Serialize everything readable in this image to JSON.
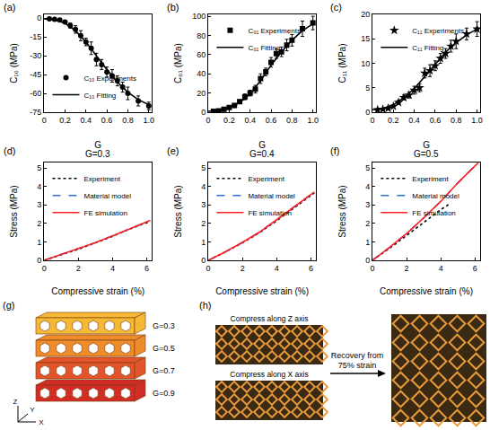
{
  "chart_data": [
    {
      "type": "scatter",
      "panel": "(a)",
      "x_label": "G",
      "y_label": "C₁₀ (MPa)",
      "xlim": [
        0,
        1.03
      ],
      "xticks": [
        0,
        0.2,
        0.4,
        0.6,
        0.8,
        {
          "value": 1,
          "label": "1.0"
        }
      ],
      "ylim": [
        -75,
        3
      ],
      "yticks": [
        -75,
        -60,
        -45,
        -30,
        -15,
        0
      ],
      "grid": false,
      "legend": "lower left",
      "series": [
        {
          "name": "C₁₀ Experiments",
          "type": "scatter",
          "marker": "circle",
          "color": "#000000",
          "x": [
            0.05,
            0.1,
            0.15,
            0.2,
            0.25,
            0.3,
            0.35,
            0.4,
            0.45,
            0.5,
            0.55,
            0.6,
            0.65,
            0.7,
            0.75,
            0.8,
            0.9,
            1.0
          ],
          "values": [
            -0.5,
            -1,
            -1.5,
            -3,
            -6,
            -9,
            -14,
            -19,
            -24,
            -33,
            -37,
            -43,
            -46,
            -50,
            -55,
            -60,
            -66,
            -70
          ],
          "errors": [
            0.5,
            0.5,
            1,
            1,
            2,
            3,
            4,
            3,
            5,
            5,
            4,
            4,
            5,
            4,
            4,
            5,
            4,
            3
          ]
        },
        {
          "name": "C₁₀ Fitting",
          "type": "line",
          "line_style": "solid",
          "color": "#000000",
          "x": [
            0,
            0.1,
            0.2,
            0.3,
            0.4,
            0.5,
            0.6,
            0.7,
            0.8,
            0.9,
            1.0
          ],
          "values": [
            -0.5,
            -1.5,
            -4,
            -10,
            -19,
            -30,
            -41,
            -51,
            -59,
            -65,
            -69
          ]
        }
      ]
    },
    {
      "type": "scatter",
      "panel": "(b)",
      "x_label": "G",
      "y_label": "C₀₁ (MPa)",
      "xlim": [
        0,
        1.03
      ],
      "xticks": [
        0,
        0.2,
        0.4,
        0.6,
        0.8,
        {
          "value": 1,
          "label": "1.0"
        }
      ],
      "ylim": [
        0,
        102
      ],
      "yticks": [
        0,
        20,
        40,
        60,
        80,
        100
      ],
      "grid": false,
      "legend": "upper left",
      "series": [
        {
          "name": "C₀₁ Experiments",
          "type": "scatter",
          "marker": "square",
          "color": "#000000",
          "x": [
            0.05,
            0.1,
            0.15,
            0.2,
            0.25,
            0.3,
            0.35,
            0.4,
            0.45,
            0.5,
            0.55,
            0.6,
            0.65,
            0.7,
            0.75,
            0.8,
            0.9,
            1.0
          ],
          "values": [
            1,
            1.5,
            3,
            5,
            7,
            11,
            16,
            20,
            24,
            35,
            42,
            52,
            61,
            63,
            70,
            75,
            87,
            93
          ],
          "errors": [
            0.5,
            1,
            1,
            1,
            2,
            2,
            3,
            3,
            4,
            5,
            4,
            5,
            5,
            5,
            6,
            6,
            8,
            7
          ]
        },
        {
          "name": "C₀₁ Fitting",
          "type": "line",
          "line_style": "solid",
          "color": "#000000",
          "x": [
            0,
            0.1,
            0.2,
            0.3,
            0.4,
            0.5,
            0.6,
            0.7,
            0.8,
            0.9,
            1.0
          ],
          "values": [
            1,
            2,
            5,
            10,
            19,
            33,
            49,
            63,
            75,
            85,
            92
          ]
        }
      ]
    },
    {
      "type": "scatter",
      "panel": "(c)",
      "x_label": "G",
      "y_label": "C₁₁ (MPa)",
      "xlim": [
        0,
        1.03
      ],
      "xticks": [
        0,
        0.2,
        0.4,
        0.6,
        0.8,
        {
          "value": 1,
          "label": "1.0"
        }
      ],
      "ylim": [
        0,
        20
      ],
      "yticks": [
        0,
        5,
        10,
        15,
        20
      ],
      "grid": false,
      "legend": "upper left",
      "series": [
        {
          "name": "C₁₁ Experiments",
          "type": "scatter",
          "marker": "star",
          "color": "#000000",
          "x": [
            0.05,
            0.1,
            0.15,
            0.2,
            0.25,
            0.3,
            0.35,
            0.4,
            0.45,
            0.5,
            0.55,
            0.6,
            0.65,
            0.7,
            0.75,
            0.8,
            0.9,
            1.0
          ],
          "values": [
            0.5,
            0.6,
            0.8,
            1.2,
            2,
            3,
            3.5,
            4.5,
            5,
            8,
            8.5,
            9.5,
            11,
            12,
            13.5,
            14.5,
            16,
            17
          ],
          "errors": [
            0.2,
            0.2,
            0.3,
            0.3,
            0.4,
            0.5,
            0.6,
            0.8,
            0.8,
            1,
            1.2,
            1,
            1,
            1,
            1.2,
            1.5,
            1.2,
            1.5
          ]
        },
        {
          "name": "C₁₁ Fitting",
          "type": "line",
          "line_style": "solid",
          "color": "#000000",
          "x": [
            0,
            0.1,
            0.2,
            0.3,
            0.4,
            0.5,
            0.6,
            0.7,
            0.8,
            0.9,
            1.0
          ],
          "values": [
            0.5,
            0.7,
            1.5,
            3,
            4.8,
            7.3,
            10,
            12.3,
            14.2,
            15.8,
            17
          ]
        }
      ]
    },
    {
      "type": "scatter",
      "panel": "(d)",
      "title": "G=0.3",
      "x_label": "Compressive strain (%)",
      "y_label": "Stress (MPa)",
      "xlim": [
        0,
        6.3
      ],
      "xticks": [
        0,
        2,
        4,
        6
      ],
      "ylim": [
        0,
        5.3
      ],
      "yticks": [
        0,
        1,
        2,
        3,
        4,
        5
      ],
      "grid": false,
      "legend": "upper left",
      "series": [
        {
          "name": "Experiment",
          "type": "line",
          "line_style": "dotted",
          "color": "#000000",
          "x": [
            0,
            1,
            2,
            3,
            4,
            5,
            6.2
          ],
          "values": [
            0,
            0.3,
            0.6,
            0.95,
            1.3,
            1.7,
            2.1
          ]
        },
        {
          "name": "Material model",
          "type": "line",
          "line_style": "dashed",
          "color": "#2e6fd8",
          "x": [
            0,
            1,
            2,
            3,
            4,
            5,
            6.2
          ],
          "values": [
            0,
            0.31,
            0.62,
            0.96,
            1.32,
            1.7,
            2.15
          ]
        },
        {
          "name": "FE simulation",
          "type": "line",
          "line_style": "solid",
          "color": "#ff2020",
          "x": [
            0,
            1,
            2,
            3,
            4,
            5,
            6.2
          ],
          "values": [
            0,
            0.31,
            0.62,
            0.96,
            1.32,
            1.71,
            2.16
          ]
        }
      ]
    },
    {
      "type": "scatter",
      "panel": "(e)",
      "title": "G=0.4",
      "x_label": "Compressive strain (%)",
      "y_label": "Stress (MPa)",
      "xlim": [
        0,
        6.3
      ],
      "xticks": [
        0,
        2,
        4,
        6
      ],
      "ylim": [
        0,
        5.3
      ],
      "yticks": [
        0,
        1,
        2,
        3,
        4,
        5
      ],
      "grid": false,
      "legend": "upper left",
      "series": [
        {
          "name": "Experiment",
          "type": "line",
          "line_style": "dotted",
          "color": "#000000",
          "x": [
            0,
            1,
            2,
            3,
            4,
            5,
            6.2
          ],
          "values": [
            0,
            0.45,
            0.95,
            1.5,
            2.15,
            2.85,
            3.65
          ]
        },
        {
          "name": "Material model",
          "type": "line",
          "line_style": "dashed",
          "color": "#2e6fd8",
          "x": [
            0,
            1,
            2,
            3,
            4,
            5,
            6.2
          ],
          "values": [
            0,
            0.46,
            0.97,
            1.53,
            2.2,
            2.9,
            3.7
          ]
        },
        {
          "name": "FE simulation",
          "type": "line",
          "line_style": "solid",
          "color": "#ff2020",
          "x": [
            0,
            1,
            2,
            3,
            4,
            5,
            6.2
          ],
          "values": [
            0,
            0.46,
            0.97,
            1.53,
            2.2,
            2.9,
            3.7
          ]
        }
      ]
    },
    {
      "type": "scatter",
      "panel": "(f)",
      "title": "G=0.5",
      "x_label": "Compressive strain (%)",
      "y_label": "Stress (MPa)",
      "xlim": [
        0,
        6.3
      ],
      "xticks": [
        0,
        2,
        4,
        6
      ],
      "ylim": [
        0,
        5.3
      ],
      "yticks": [
        0,
        1,
        2,
        3,
        4,
        5
      ],
      "grid": false,
      "legend": "upper left",
      "series": [
        {
          "name": "Experiment",
          "type": "line",
          "line_style": "dotted",
          "color": "#000000",
          "x": [
            0,
            1,
            2,
            3,
            4,
            4.5
          ],
          "values": [
            0,
            0.65,
            1.35,
            2.05,
            2.75,
            3.05
          ]
        },
        {
          "name": "Material model",
          "type": "line",
          "line_style": "dashed",
          "color": "#2e6fd8",
          "x": [
            0,
            1,
            2,
            3,
            4,
            5,
            6.2
          ],
          "values": [
            0,
            0.7,
            1.45,
            2.3,
            3.2,
            4.2,
            5.3
          ]
        },
        {
          "name": "FE simulation",
          "type": "line",
          "line_style": "solid",
          "color": "#ff2020",
          "x": [
            0,
            1,
            2,
            3,
            4,
            5,
            6.2
          ],
          "values": [
            0,
            0.7,
            1.45,
            2.3,
            3.2,
            4.2,
            5.3
          ]
        }
      ]
    }
  ],
  "illustrations": {
    "panel_g": {
      "panel": "(g)",
      "levels": [
        "G=0.3",
        "G=0.5",
        "G=0.7",
        "G=0.9"
      ],
      "axes": {
        "x": "X",
        "y": "Y",
        "z": "Z"
      }
    },
    "panel_h": {
      "panel": "(h)",
      "photos": [
        "Compress along Z axis",
        "Compress along X axis"
      ],
      "arrow_text": "Recovery from 75% strain"
    }
  }
}
